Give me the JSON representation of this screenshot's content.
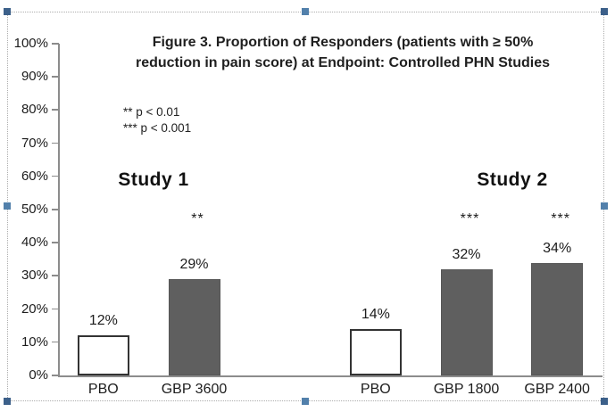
{
  "window": {
    "description_visible_state": "selected chart image with resize handles"
  },
  "chart_data": {
    "type": "bar",
    "title": "Figure 3. Proportion of Responders (patients with ≥ 50% reduction in pain score) at Endpoint: Controlled PHN Studies",
    "title_lines": [
      "Figure 3. Proportion of Responders (patients with ≥ 50%",
      "reduction in pain score) at Endpoint: Controlled PHN Studies"
    ],
    "categories": [
      "PBO",
      "GBP 3600",
      "",
      "PBO",
      "GBP 1800",
      "GBP 2400"
    ],
    "values": [
      12,
      29,
      null,
      14,
      32,
      34
    ],
    "data_labels": [
      "12%",
      "29%",
      "",
      "14%",
      "32%",
      "34%"
    ],
    "significance": [
      "",
      "**",
      "",
      "",
      "***",
      "***"
    ],
    "bar_fills": [
      "#FFFFFF",
      "#5F5F5F",
      null,
      "#FFFFFF",
      "#5F5F5F",
      "#5F5F5F"
    ],
    "group_labels": [
      "Study 1",
      "Study 2"
    ],
    "annotations": [
      "** p < 0.01",
      "*** p < 0.001"
    ],
    "xlabel": "",
    "ylabel": "",
    "ylim": [
      0,
      100
    ],
    "ytick_labels": [
      "0%",
      "10%",
      "20%",
      "30%",
      "40%",
      "50%",
      "60%",
      "70%",
      "80%",
      "90%",
      "100%"
    ],
    "grid": "off",
    "legend": "none"
  },
  "colors": {
    "bar_gray": "#5F5F5F",
    "white_bar_border": "#333333",
    "axis_gray": "#8C8C8C",
    "text": "#1C1C1C",
    "handle_corner": "#3C608A",
    "handle_edge": "#5280AB",
    "selection_border": "#ADADAD"
  }
}
